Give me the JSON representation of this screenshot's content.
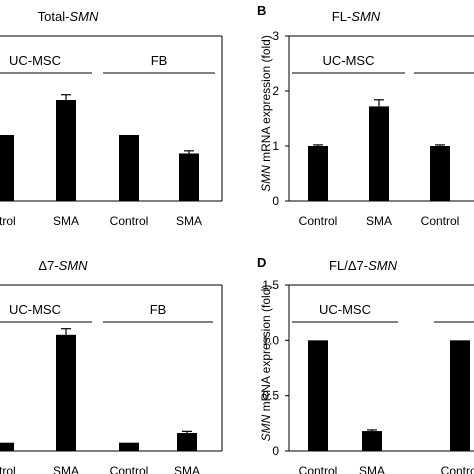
{
  "chart_data": [
    {
      "panel": "",
      "type": "bar",
      "title": "Total-SMN",
      "title_parts": [
        {
          "t": "Total-",
          "i": false
        },
        {
          "t": "SMN",
          "i": true
        }
      ],
      "ylabel": "",
      "ylim": [
        0,
        2.5
      ],
      "yticks": [],
      "categories": [
        "ntrol",
        "SMA",
        "Control",
        "SMA"
      ],
      "values": [
        1.0,
        1.53,
        1.0,
        0.72
      ],
      "errors": [
        0.0,
        0.08,
        0.0,
        0.04
      ],
      "groups": [
        {
          "label": "UC-MSC",
          "from": 0,
          "to": 1
        },
        {
          "label": "FB",
          "from": 2,
          "to": 3
        }
      ]
    },
    {
      "panel": "B",
      "type": "bar",
      "title": "FL-SMN",
      "title_parts": [
        {
          "t": "FL-",
          "i": false
        },
        {
          "t": "SMN",
          "i": true
        }
      ],
      "ylabel_parts": [
        {
          "t": "SMN",
          "i": true
        },
        {
          "t": " mRNA expression (fold)",
          "i": false
        }
      ],
      "ylim": [
        0,
        3
      ],
      "yticks": [
        "0",
        "1",
        "2",
        "3"
      ],
      "categories": [
        "Control",
        "SMA",
        "Control",
        ""
      ],
      "values": [
        1.0,
        1.72,
        1.0,
        null
      ],
      "errors": [
        0.02,
        0.12,
        0.02,
        null
      ],
      "groups": [
        {
          "label": "UC-MSC",
          "from": 0,
          "to": 1
        },
        {
          "label": "",
          "from": 2,
          "to": 3
        }
      ]
    },
    {
      "panel": "",
      "type": "bar",
      "title": "Δ7-SMN",
      "title_parts": [
        {
          "t": "Δ7-",
          "i": false
        },
        {
          "t": "SMN",
          "i": true
        }
      ],
      "ylabel": "",
      "ylim": [
        0,
        6
      ],
      "yticks": [],
      "categories": [
        "ntrol",
        "SMA",
        "Control",
        "SMA"
      ],
      "values": [
        0.3,
        4.2,
        0.3,
        0.65
      ],
      "errors": [
        0.0,
        0.22,
        0.0,
        0.06
      ],
      "groups": [
        {
          "label": "UC-MSC",
          "from": 0,
          "to": 1
        },
        {
          "label": "FB",
          "from": 2,
          "to": 3
        }
      ]
    },
    {
      "panel": "D",
      "type": "bar",
      "title": "FL/Δ7-SMN",
      "title_parts": [
        {
          "t": "FL/Δ7-",
          "i": false
        },
        {
          "t": "SMN",
          "i": true
        }
      ],
      "ylabel_parts": [
        {
          "t": "SMN",
          "i": true
        },
        {
          "t": " mRNA expression (fold)",
          "i": false
        }
      ],
      "ylim": [
        0,
        1.5
      ],
      "yticks": [
        "0",
        "0.5",
        "1.0",
        "1.5"
      ],
      "categories": [
        "Control",
        "SMA",
        "Control",
        ""
      ],
      "values": [
        1.0,
        0.18,
        1.0,
        null
      ],
      "errors": [
        0.0,
        0.01,
        0.0,
        null
      ],
      "groups": [
        {
          "label": "UC-MSC",
          "from": 0,
          "to": 1
        },
        {
          "label": "",
          "from": 2,
          "to": 3
        }
      ]
    }
  ]
}
